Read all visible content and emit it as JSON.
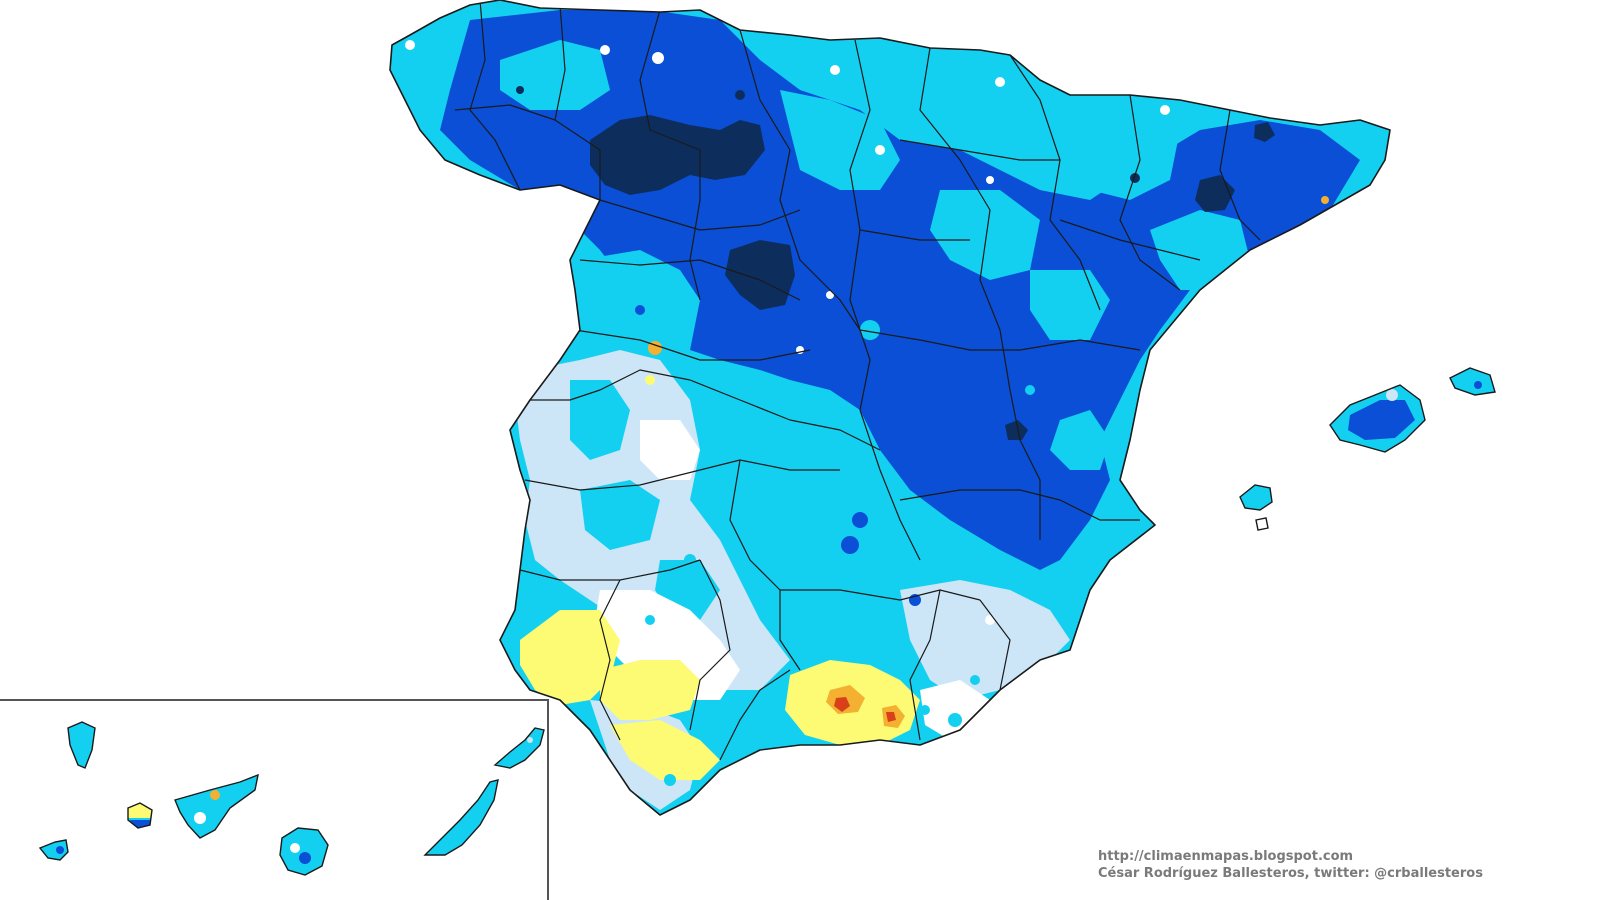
{
  "map": {
    "palette": {
      "navy": "#0d2e5c",
      "dark_blue": "#0a4fd6",
      "medium_blue": "#1e86e6",
      "light_blue": "#14d0f0",
      "pale_blue": "#cce6f8",
      "white": "#ffffff",
      "yellow": "#fdfb74",
      "orange": "#f4b030",
      "red": "#d8401a",
      "border": "#1a1a1a"
    }
  },
  "credits": {
    "url": "http://climaenmapas.blogspot.com",
    "author": "César Rodríguez Ballesteros, twitter: @crballesteros"
  }
}
